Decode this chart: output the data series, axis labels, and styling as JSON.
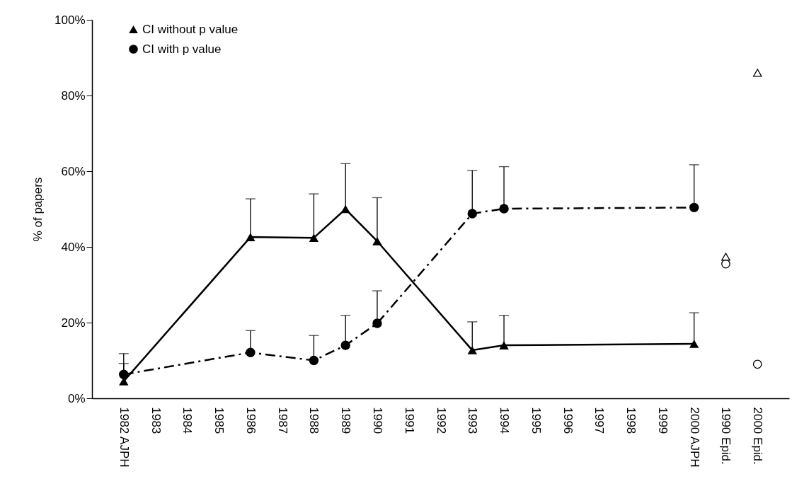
{
  "chart_data": {
    "type": "line",
    "ylabel": "% of papers",
    "categories": [
      "1982 AJPH",
      "1983",
      "1984",
      "1985",
      "1986",
      "1987",
      "1988",
      "1989",
      "1990",
      "1991",
      "1992",
      "1993",
      "1994",
      "1995",
      "1996",
      "1997",
      "1998",
      "1999",
      "2000 AJPH",
      "1990 Epid.",
      "2000 Epid."
    ],
    "ylim": [
      0,
      100
    ],
    "yticks": [
      {
        "value": 0,
        "label": "0%"
      },
      {
        "value": 20,
        "label": "20%"
      },
      {
        "value": 40,
        "label": "40%"
      },
      {
        "value": 60,
        "label": "60%"
      },
      {
        "value": 80,
        "label": "80%"
      },
      {
        "value": 100,
        "label": "100%"
      }
    ],
    "legend": "top left",
    "series": [
      {
        "name": "CI without p value",
        "color": "#000000",
        "marker": "triangle",
        "line_style": "solid",
        "values": [
          4.5,
          null,
          null,
          null,
          42.6,
          null,
          42.4,
          50,
          41.5,
          null,
          null,
          12.7,
          14,
          null,
          null,
          null,
          null,
          null,
          14.4,
          null,
          null
        ],
        "errors": [
          [
            4.5,
            9.2
          ],
          null,
          null,
          null,
          [
            42.6,
            52.7
          ],
          null,
          [
            42.4,
            54
          ],
          [
            50,
            62
          ],
          [
            41.5,
            53
          ],
          null,
          null,
          [
            12.7,
            20.2
          ],
          [
            14,
            21.9
          ],
          null,
          null,
          null,
          null,
          null,
          [
            14.4,
            22.6
          ],
          null,
          null
        ]
      },
      {
        "name": "CI with p value",
        "color": "#000000",
        "marker": "circle",
        "line_style": "dashed",
        "values": [
          6.3,
          null,
          null,
          null,
          12.1,
          null,
          10,
          14,
          19.8,
          null,
          null,
          48.8,
          50.1,
          null,
          null,
          null,
          null,
          null,
          50.4,
          null,
          null
        ],
        "errors": [
          [
            6.3,
            11.8
          ],
          null,
          null,
          null,
          [
            12.1,
            17.9
          ],
          null,
          [
            10,
            16.6
          ],
          [
            14,
            21.9
          ],
          [
            19.8,
            28.4
          ],
          null,
          null,
          [
            48.8,
            60.2
          ],
          [
            50.1,
            61.2
          ],
          null,
          null,
          null,
          null,
          null,
          [
            50.4,
            61.7
          ],
          null,
          null
        ]
      },
      {
        "type": "scatter",
        "color": "#000000",
        "marker": "triangle",
        "values": [
          null,
          null,
          null,
          null,
          null,
          null,
          null,
          null,
          null,
          null,
          null,
          null,
          null,
          null,
          null,
          null,
          null,
          null,
          null,
          37.4,
          86
        ]
      },
      {
        "type": "scatter",
        "color": "#000000",
        "marker": "circle",
        "values": [
          null,
          null,
          null,
          null,
          null,
          null,
          null,
          null,
          null,
          null,
          null,
          null,
          null,
          null,
          null,
          null,
          null,
          null,
          null,
          35.5,
          9
        ]
      }
    ]
  }
}
